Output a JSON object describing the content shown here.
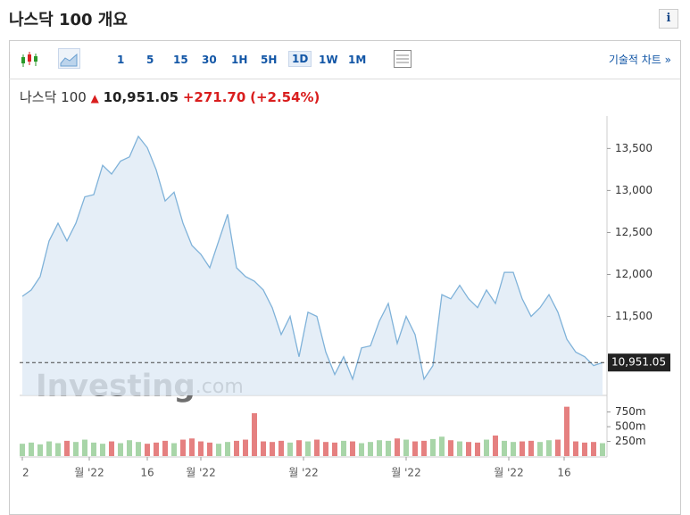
{
  "header": {
    "title": "나스닥 100 개요",
    "info": "i"
  },
  "toolbar": {
    "intervals": [
      "1",
      "5",
      "15",
      "30",
      "1H",
      "5H",
      "1D",
      "1W",
      "1M"
    ],
    "active": "1D",
    "link": "기술적 차트 »"
  },
  "quote": {
    "name": "나스닥 100",
    "price": "10,951.05",
    "change": "+271.70",
    "percent": "(+2.54%)"
  },
  "watermark": {
    "brand": "Investing",
    "suffix": ".com"
  },
  "chart_data": {
    "type": "line",
    "xticks": [
      {
        "value": 0,
        "label": "2"
      },
      {
        "value": 7.5,
        "label": "월 '22"
      },
      {
        "value": 14,
        "label": "16"
      },
      {
        "value": 20,
        "label": "월 '22"
      },
      {
        "value": 31.5,
        "label": "월 '22"
      },
      {
        "value": 43,
        "label": "월 '22"
      },
      {
        "value": 54.5,
        "label": "월 '22"
      },
      {
        "value": 60.7,
        "label": "16"
      }
    ],
    "series": [
      {
        "name": "나스닥 100",
        "color": "#7fb2d9",
        "values": [
          11740,
          11815,
          11975,
          12400,
          12610,
          12400,
          12610,
          12925,
          12950,
          13300,
          13195,
          13350,
          13400,
          13645,
          13510,
          13245,
          12875,
          12980,
          12610,
          12345,
          12240,
          12080,
          12400,
          12715,
          12080,
          11975,
          11920,
          11815,
          11605,
          11285,
          11500,
          11020,
          11550,
          11500,
          11075,
          10810,
          11020,
          10755,
          11125,
          11150,
          11445,
          11655,
          11180,
          11500,
          11285,
          10755,
          10915,
          11760,
          11710,
          11870,
          11710,
          11605,
          11815,
          11655,
          12025,
          12025,
          11710,
          11500,
          11605,
          11760,
          11550,
          11230,
          11075,
          11020,
          10915,
          10951.05
        ]
      },
      {
        "name": "거래량",
        "axis": "volume",
        "values": [
          210,
          230,
          200,
          250,
          220,
          260,
          240,
          280,
          230,
          210,
          250,
          220,
          270,
          240,
          210,
          230,
          260,
          220,
          280,
          300,
          250,
          230,
          210,
          240,
          260,
          280,
          730,
          250,
          240,
          260,
          230,
          270,
          250,
          280,
          240,
          230,
          260,
          250,
          220,
          240,
          270,
          260,
          300,
          280,
          250,
          260,
          290,
          330,
          270,
          250,
          240,
          230,
          280,
          350,
          260,
          240,
          250,
          260,
          240,
          270,
          280,
          840,
          250,
          230,
          240,
          220
        ]
      }
    ],
    "ylim": [
      10560,
      13780
    ],
    "yticks": [
      {
        "value": 11500,
        "label": "11,500"
      },
      {
        "value": 12000,
        "label": "12,000"
      },
      {
        "value": 12500,
        "label": "12,500"
      },
      {
        "value": 13000,
        "label": "13,000"
      },
      {
        "value": 13500,
        "label": "13,500"
      }
    ],
    "volume_lim": [
      0,
      850
    ],
    "volume_ticks": [
      {
        "value": 250,
        "label": "250m"
      },
      {
        "value": 500,
        "label": "500m"
      },
      {
        "value": 750,
        "label": "750m"
      }
    ],
    "up_color": "#a8d5a8",
    "down_color": "#e58080",
    "reference_line": {
      "value": 10951.05,
      "label": "10,951.05"
    }
  }
}
